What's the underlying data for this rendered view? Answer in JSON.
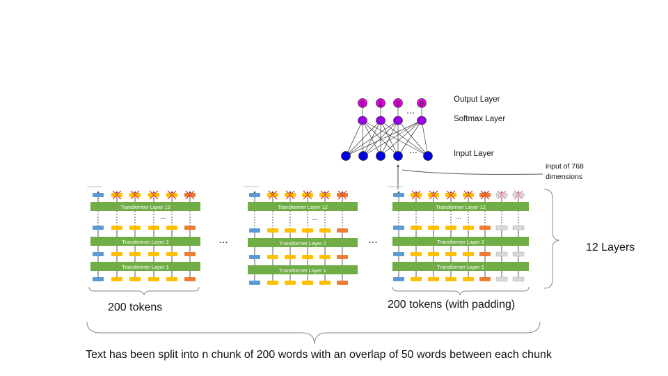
{
  "output_layer": {
    "label": "Output Layer",
    "values": [
      "0",
      "1",
      "0",
      "0"
    ],
    "ellipsis": "..."
  },
  "softmax_layer": {
    "label": "Softmax Layer"
  },
  "input_layer": {
    "label": "Input Layer",
    "ellipsis": "..."
  },
  "input_note": {
    "line1": "input of 768",
    "line2": "dimensions"
  },
  "chunks": [
    {
      "layer_top": "Transformer Layer 12",
      "layer_mid": "Transformer Layer 2",
      "layer_bottom": "Transformer Layer 1",
      "dots": "...",
      "tokens_label": "200 tokens"
    },
    {
      "layer_top": "Transformer Layer 12",
      "layer_mid": "Transformer Layer 2",
      "layer_bottom": "Transformer Layer 1",
      "dots": "..."
    },
    {
      "layer_top": "Transformer Layer 12",
      "layer_mid": "Transformer Layer 2",
      "layer_bottom": "Transformer Layer 1",
      "dots": "...",
      "tokens_label": "200 tokens (with padding)"
    }
  ],
  "between_chunks_ellipsis": "...",
  "layers_label": "12 Layers",
  "caption": "Text has been split into n chunk of 200 words with an overlap of 50 words between each chunk",
  "colors": {
    "green": "#70ad47",
    "blue": "#5b9bd5",
    "yellow": "#ffc000",
    "orange": "#ed7d31",
    "gray": "#d9d9d9",
    "magenta": "#e000e0",
    "purple": "#9900e6",
    "node_blue": "#0000e0"
  }
}
